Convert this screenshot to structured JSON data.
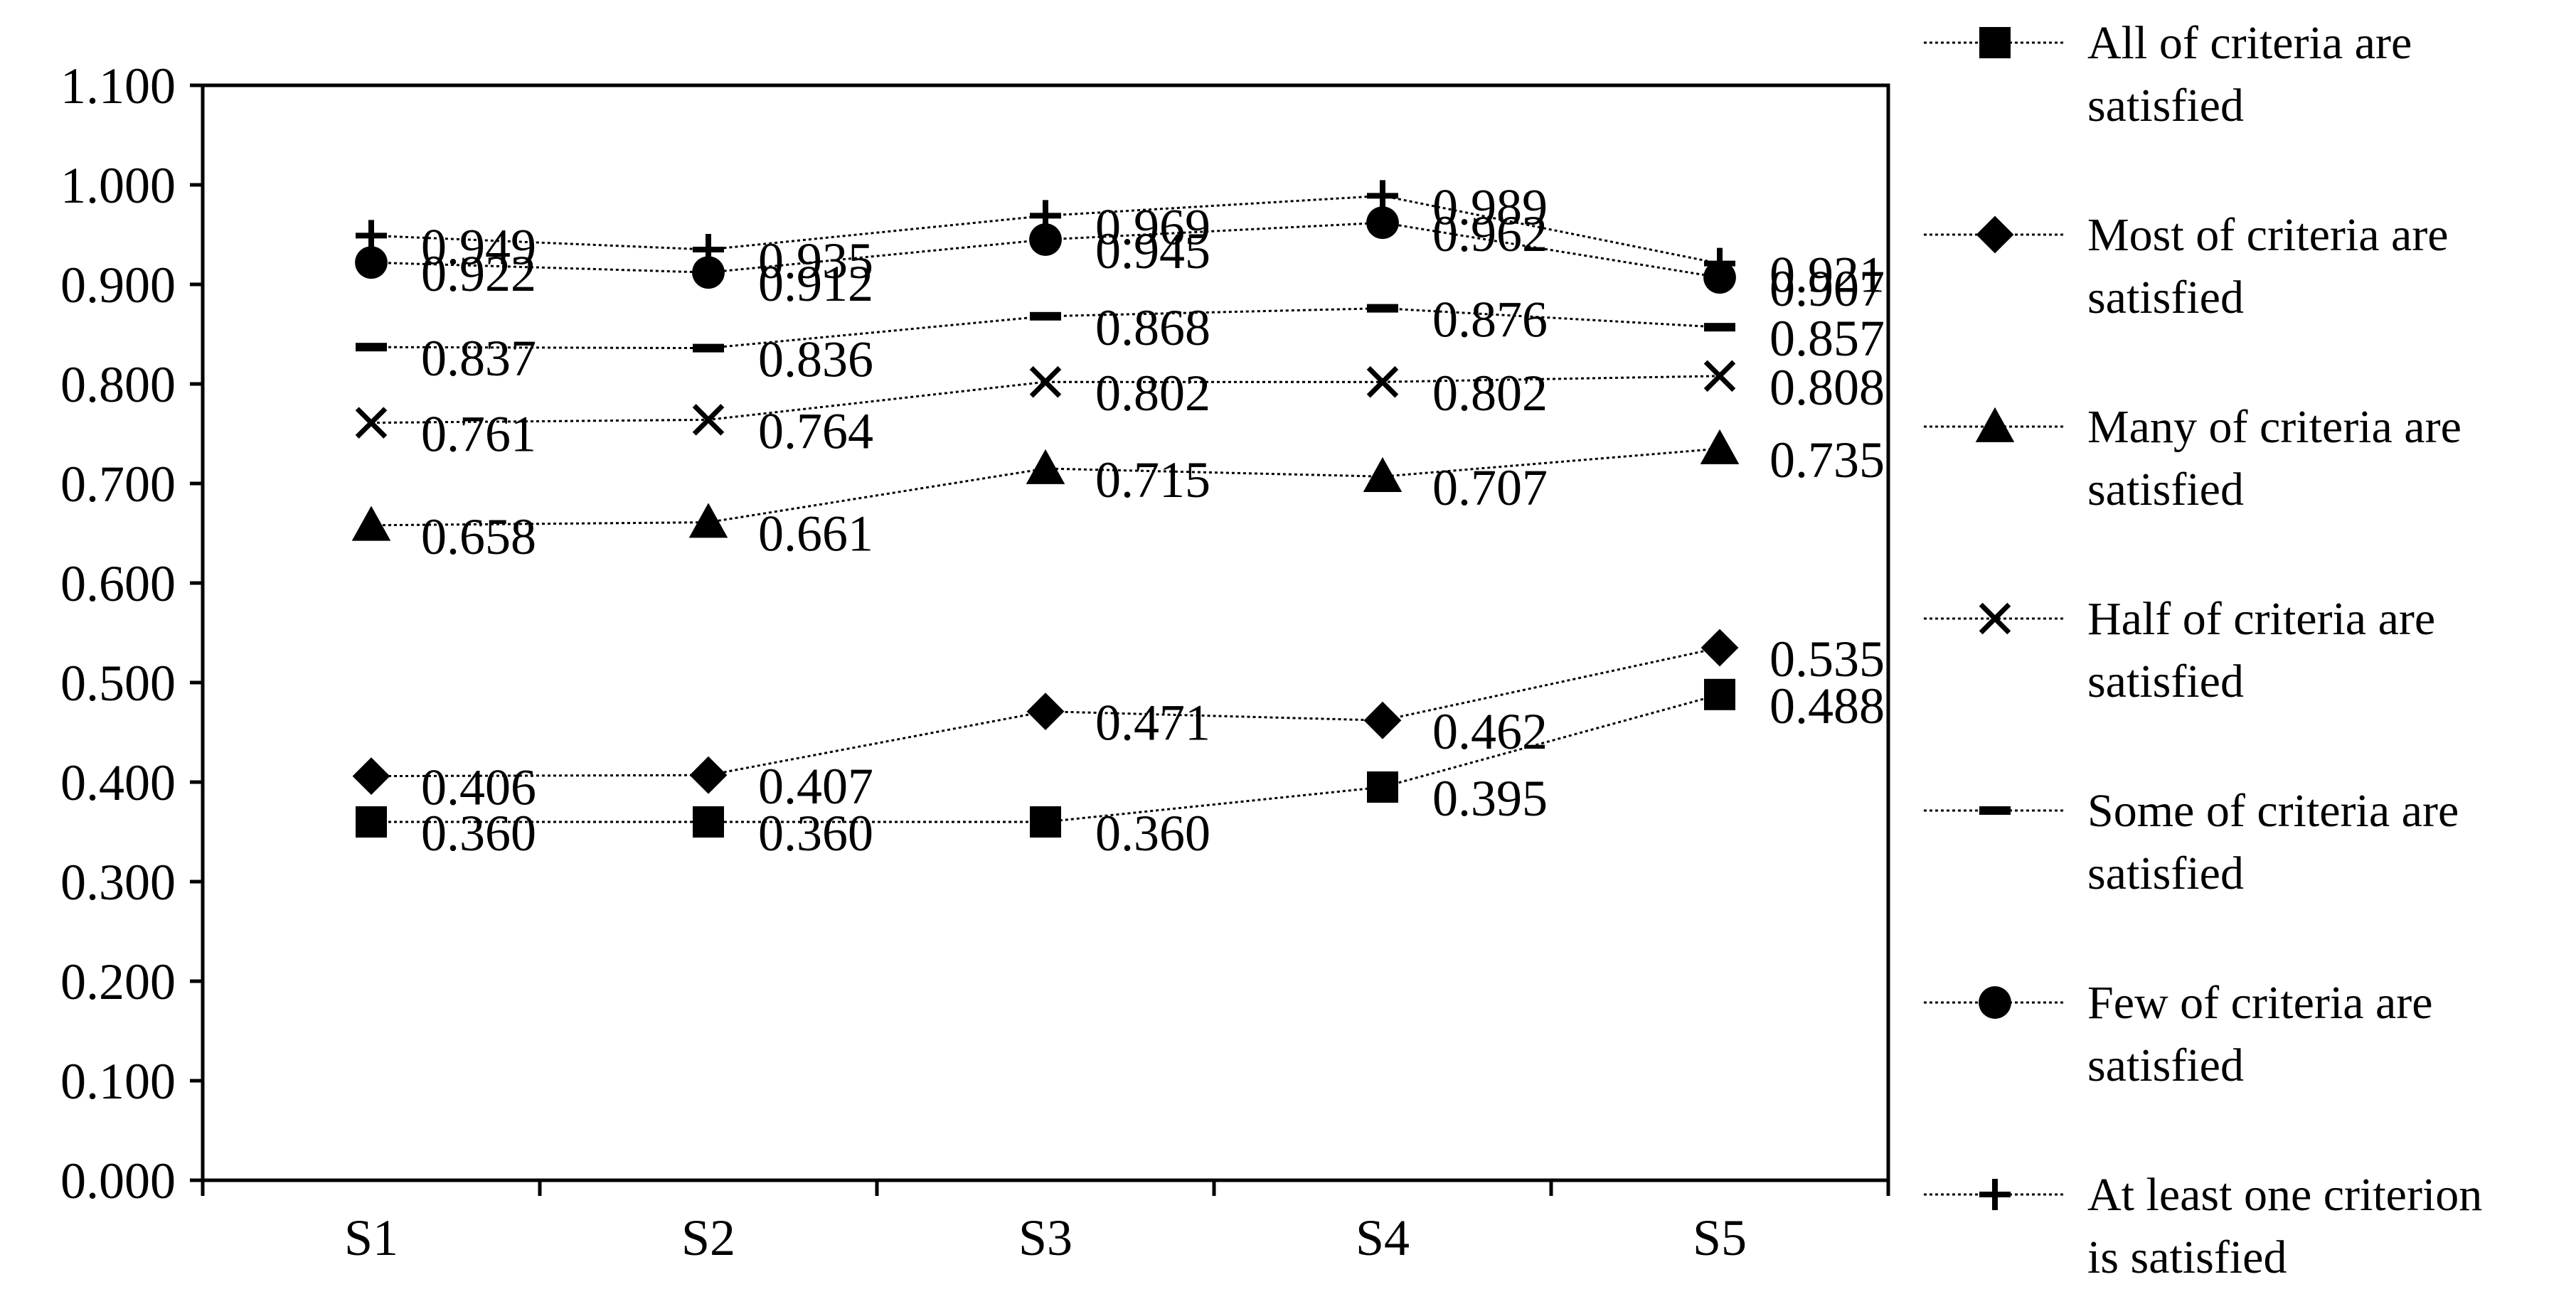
{
  "chart_data": {
    "type": "line",
    "title": "",
    "xlabel": "",
    "ylabel": "",
    "categories": [
      "S1",
      "S2",
      "S3",
      "S4",
      "S5"
    ],
    "ylim": [
      0,
      1.1
    ],
    "y_ticks": [
      "0.000",
      "0.100",
      "0.200",
      "0.300",
      "0.400",
      "0.500",
      "0.600",
      "0.700",
      "0.800",
      "0.900",
      "1.000",
      "1.100"
    ],
    "grid": false,
    "legend_position": "right",
    "series": [
      {
        "name_lines": [
          "All of criteria are",
          "satisfied"
        ],
        "marker": "square",
        "values": [
          0.36,
          0.36,
          0.36,
          0.395,
          0.488
        ],
        "labels": [
          "0.360",
          "0.360",
          "0.360",
          "0.395",
          "0.488"
        ]
      },
      {
        "name_lines": [
          "Most of criteria are",
          "satisfied"
        ],
        "marker": "diamond",
        "values": [
          0.406,
          0.407,
          0.471,
          0.462,
          0.535
        ],
        "labels": [
          "0.406",
          "0.407",
          "0.471",
          "0.462",
          "0.535"
        ]
      },
      {
        "name_lines": [
          "Many of criteria are",
          "satisfied"
        ],
        "marker": "triangle",
        "values": [
          0.658,
          0.661,
          0.715,
          0.707,
          0.735
        ],
        "labels": [
          "0.658",
          "0.661",
          "0.715",
          "0.707",
          "0.735"
        ]
      },
      {
        "name_lines": [
          "Half of criteria are",
          "satisfied"
        ],
        "marker": "x",
        "values": [
          0.761,
          0.764,
          0.802,
          0.802,
          0.808
        ],
        "labels": [
          "0.761",
          "0.764",
          "0.802",
          "0.802",
          "0.808"
        ]
      },
      {
        "name_lines": [
          "Some of criteria are",
          "satisfied"
        ],
        "marker": "dash",
        "values": [
          0.837,
          0.836,
          0.868,
          0.876,
          0.857
        ],
        "labels": [
          "0.837",
          "0.836",
          "0.868",
          "0.876",
          "0.857"
        ]
      },
      {
        "name_lines": [
          "Few of criteria are",
          "satisfied"
        ],
        "marker": "circle",
        "values": [
          0.922,
          0.912,
          0.945,
          0.962,
          0.907
        ],
        "labels": [
          "0.922",
          "0.912",
          "0.945",
          "0.962",
          "0.907"
        ]
      },
      {
        "name_lines": [
          "At least one criterion",
          "is satisfied"
        ],
        "marker": "plus",
        "values": [
          0.949,
          0.935,
          0.969,
          0.989,
          0.921
        ],
        "labels": [
          "0.949",
          "0.935",
          "0.969",
          "0.989",
          "0.921"
        ]
      }
    ]
  }
}
